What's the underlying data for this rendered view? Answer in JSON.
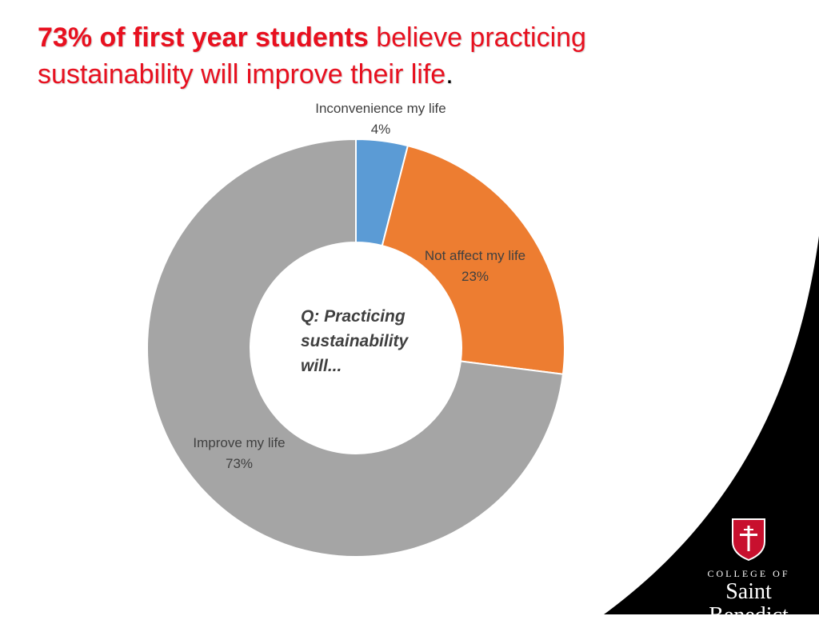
{
  "title": {
    "bold_part": "73% of first year students",
    "rest_part": " believe practicing sustainability will improve their life",
    "period": "."
  },
  "center_label": "Q: Practicing sustainability will...",
  "chart_data": {
    "type": "pie",
    "donut": true,
    "slices": [
      {
        "name": "Inconvenience my life",
        "value": 4,
        "label": "4%",
        "color": "#5b9bd5"
      },
      {
        "name": "Not affect my life",
        "value": 23,
        "label": "23%",
        "color": "#ed7d31"
      },
      {
        "name": "Improve my life",
        "value": 73,
        "label": "73%",
        "color": "#a5a5a5"
      }
    ]
  },
  "colors": {
    "title_red": "#e8101f",
    "background_black": "#000000"
  },
  "logo": {
    "line1": "COLLEGE OF",
    "line2": "Saint Benedict",
    "icon": "shield-cross-icon",
    "shield_color": "#c8102e"
  }
}
